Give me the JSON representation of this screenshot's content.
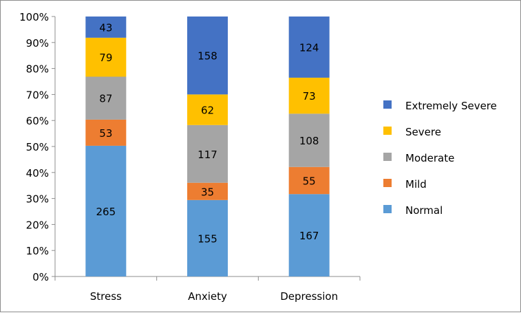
{
  "chart_data": {
    "type": "stacked-bar-100",
    "categories": [
      "Stress",
      "Anxiety",
      "Depression"
    ],
    "series": [
      {
        "name": "Normal",
        "color": "#5b9bd5",
        "values": [
          265,
          155,
          167
        ]
      },
      {
        "name": "Mild",
        "color": "#ed7d31",
        "values": [
          53,
          35,
          55
        ]
      },
      {
        "name": "Moderate",
        "color": "#a5a5a5",
        "values": [
          87,
          117,
          108
        ]
      },
      {
        "name": "Severe",
        "color": "#ffc000",
        "values": [
          79,
          62,
          73
        ]
      },
      {
        "name": "Extremely Severe",
        "color": "#4472c4",
        "values": [
          43,
          158,
          124
        ]
      }
    ],
    "y_ticks": [
      "0%",
      "10%",
      "20%",
      "30%",
      "40%",
      "50%",
      "60%",
      "70%",
      "80%",
      "90%",
      "100%"
    ],
    "ylim": [
      0,
      100
    ],
    "legend_position": "right",
    "grid": false
  }
}
